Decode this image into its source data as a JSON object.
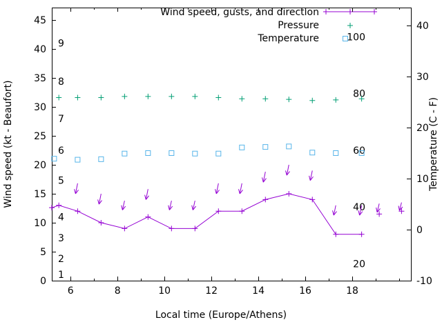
{
  "legend": {
    "entries": [
      {
        "label": "Wind speed, gusts, and direction",
        "series": "wind_speed"
      },
      {
        "label": "Pressure",
        "series": "pressure"
      },
      {
        "label": "Temperature",
        "series": "temperature"
      }
    ]
  },
  "axes": {
    "x": {
      "title": "Local time (Europe/Athens)",
      "min": 5.2,
      "max": 20.5,
      "ticks": [
        6,
        8,
        10,
        12,
        14,
        16,
        18
      ]
    },
    "y_left": {
      "title": "Wind speed (kt - Beaufort)",
      "min": 0,
      "max": 47.14,
      "ticks": [
        0,
        5,
        10,
        15,
        20,
        25,
        30,
        35,
        40,
        45
      ]
    },
    "y_right": {
      "title": "Temperature (C - F)",
      "min": -10,
      "max": 43.51,
      "ticks": [
        -10,
        0,
        10,
        20,
        30,
        40
      ]
    },
    "beaufort_labels": [
      [
        "1",
        1.1
      ],
      [
        "2",
        3.8
      ],
      [
        "3",
        7.4
      ],
      [
        "4",
        11.0
      ],
      [
        "5",
        17.3
      ],
      [
        "6",
        22.5
      ],
      [
        "7",
        28.0
      ],
      [
        "8",
        34.4
      ],
      [
        "9",
        41.0
      ]
    ],
    "fahrenheit_labels": [
      20,
      40,
      60,
      80,
      100
    ]
  },
  "chart_data": {
    "type": "line",
    "title": "",
    "xlabel": "Local time (Europe/Athens)",
    "ylabel_left": "Wind speed (kt - Beaufort)",
    "ylabel_right": "Temperature (C - F)",
    "grid": false,
    "legend_position": "top-right-inside",
    "series": [
      {
        "name": "wind_speed",
        "axis": "left",
        "color": "#9400d3",
        "marker": "plus",
        "line": true,
        "points": [
          [
            5.2,
            12.6
          ],
          [
            5.5,
            13.0
          ],
          [
            6.3,
            12.0
          ],
          [
            7.3,
            10.0
          ],
          [
            8.3,
            9.0
          ],
          [
            9.3,
            11.0
          ],
          [
            10.3,
            9.0
          ],
          [
            11.3,
            9.0
          ],
          [
            12.3,
            12.0
          ],
          [
            13.3,
            12.0
          ],
          [
            14.3,
            14.0
          ],
          [
            15.3,
            15.0
          ],
          [
            16.3,
            14.0
          ],
          [
            17.3,
            8.0
          ],
          [
            18.4,
            8.0
          ]
        ]
      },
      {
        "name": "wind_speed_extra",
        "axis": "left",
        "color": "#9400d3",
        "marker": "plus",
        "line": false,
        "points": [
          [
            19.15,
            11.5
          ],
          [
            20.1,
            12.0
          ]
        ]
      },
      {
        "name": "wind_gust_arrows",
        "axis": "left",
        "color": "#9400d3",
        "type": "arrows",
        "arrows": [
          [
            6.3,
            16.8,
            15.0
          ],
          [
            7.3,
            15.0,
            13.2
          ],
          [
            8.3,
            13.8,
            12.2
          ],
          [
            9.3,
            15.8,
            14.0
          ],
          [
            10.3,
            13.8,
            12.2
          ],
          [
            11.3,
            13.8,
            12.2
          ],
          [
            12.3,
            16.8,
            15.0
          ],
          [
            13.3,
            16.8,
            15.0
          ],
          [
            14.3,
            18.8,
            17.0
          ],
          [
            15.3,
            20.0,
            18.2
          ],
          [
            16.3,
            19.0,
            17.3
          ],
          [
            17.3,
            13.0,
            11.3
          ],
          [
            18.4,
            13.0,
            11.3
          ],
          [
            19.15,
            13.3,
            11.8
          ],
          [
            20.1,
            13.5,
            12.1
          ]
        ]
      },
      {
        "name": "pressure",
        "axis": "left",
        "color": "#009e73",
        "marker": "plus",
        "line": false,
        "points": [
          [
            5.5,
            31.6
          ],
          [
            6.3,
            31.6
          ],
          [
            7.3,
            31.6
          ],
          [
            8.3,
            31.8
          ],
          [
            9.3,
            31.8
          ],
          [
            10.3,
            31.8
          ],
          [
            11.3,
            31.8
          ],
          [
            12.3,
            31.6
          ],
          [
            13.3,
            31.4
          ],
          [
            14.3,
            31.4
          ],
          [
            15.3,
            31.3
          ],
          [
            16.3,
            31.1
          ],
          [
            17.3,
            31.2
          ],
          [
            18.4,
            31.4
          ]
        ]
      },
      {
        "name": "temperature",
        "axis": "right",
        "color": "#56b4e9",
        "marker": "square",
        "line": false,
        "points": [
          [
            5.3,
            13.9
          ],
          [
            6.3,
            13.7
          ],
          [
            7.3,
            13.8
          ],
          [
            8.3,
            14.9
          ],
          [
            9.3,
            15.0
          ],
          [
            10.3,
            15.0
          ],
          [
            11.3,
            14.9
          ],
          [
            12.3,
            14.9
          ],
          [
            13.3,
            16.1
          ],
          [
            14.3,
            16.2
          ],
          [
            15.3,
            16.3
          ],
          [
            16.3,
            15.1
          ],
          [
            17.3,
            15.0
          ],
          [
            18.4,
            15.0
          ]
        ]
      }
    ]
  }
}
